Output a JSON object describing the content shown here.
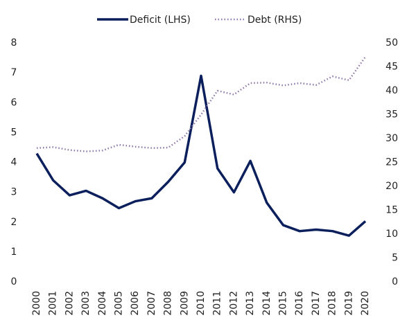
{
  "chart_data": {
    "type": "line",
    "categories": [
      "2000",
      "2001",
      "2002",
      "2003",
      "2004",
      "2005",
      "2006",
      "2007",
      "2008",
      "2009",
      "2010",
      "2011",
      "2012",
      "2013",
      "2014",
      "2015",
      "2016",
      "2017",
      "2018",
      "2019",
      "2020"
    ],
    "series": [
      {
        "name": "Deficit (LHS)",
        "color": "#0b1f5c",
        "style": "solid",
        "values": [
          4.3,
          3.4,
          2.9,
          3.05,
          2.8,
          2.47,
          2.7,
          2.8,
          3.35,
          4.0,
          6.9,
          3.8,
          3.0,
          4.05,
          2.65,
          1.9,
          1.7,
          1.75,
          1.7,
          1.55,
          2.03
        ]
      },
      {
        "name": "Debt (RHS)",
        "color": "#8e76a8",
        "style": "dotted",
        "axis": "y2",
        "values": [
          28,
          28.2,
          27.6,
          27.3,
          27.5,
          28.7,
          28.3,
          28,
          28.1,
          30.5,
          35,
          40,
          39.2,
          41.6,
          41.7,
          41.1,
          41.6,
          41.2,
          43,
          42.2,
          47.1
        ]
      }
    ],
    "ylim": [
      0,
      8
    ],
    "yticks": [
      0,
      1,
      2,
      3,
      4,
      5,
      6,
      7,
      8
    ],
    "y2lim": [
      0,
      50
    ],
    "y2ticks": [
      0,
      5,
      10,
      15,
      20,
      25,
      30,
      35,
      40,
      45,
      50
    ],
    "legend": "top"
  }
}
